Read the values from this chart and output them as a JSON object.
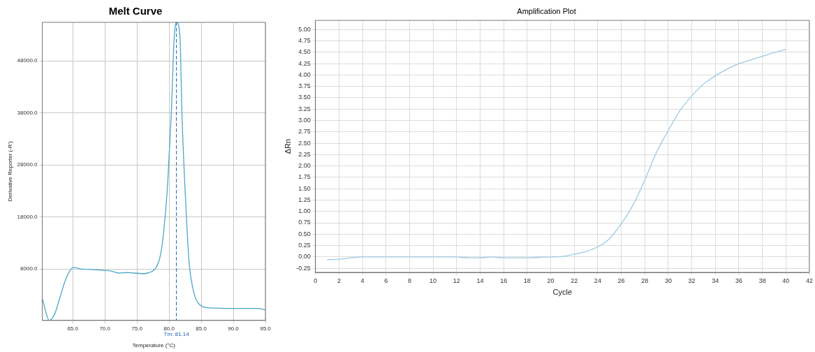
{
  "chart_data": [
    {
      "type": "line",
      "title": "Melt Curve",
      "xlabel": "Temperature (°C)",
      "ylabel": "Derivative Reporter (-R')",
      "x": [
        60.25,
        61.35,
        62.2,
        63.0,
        64.0,
        65.1,
        66.2,
        67.9,
        69.9,
        71.0,
        72.1,
        73.5,
        74.6,
        76.2,
        77.3,
        78.0,
        78.7,
        79.25,
        79.8,
        80.35,
        80.8,
        81.2,
        81.7,
        82.0,
        82.6,
        83.1,
        83.7,
        84.55,
        86.4,
        90.1,
        93.85,
        95.0
      ],
      "series": [
        {
          "color": "#4aa6c8",
          "values": [
            2300,
            -1900,
            -600,
            2500,
            6300,
            8300,
            8000,
            7900,
            7700,
            7600,
            7200,
            7300,
            7200,
            7100,
            7500,
            8300,
            10900,
            16200,
            24800,
            38000,
            52500,
            55400,
            52500,
            38000,
            20500,
            9600,
            4300,
            1400,
            500,
            400,
            400,
            100
          ]
        }
      ],
      "xlim": [
        60.25,
        95
      ],
      "ylim": [
        -1900,
        55400
      ],
      "xticks": [
        {
          "value": 65,
          "label": "65.0"
        },
        {
          "value": 70,
          "label": "70.0"
        },
        {
          "value": 75,
          "label": "75.0"
        },
        {
          "value": 80,
          "label": "80.0"
        },
        {
          "value": 85,
          "label": "85.0"
        },
        {
          "value": 90,
          "label": "90.0"
        },
        {
          "value": 95,
          "label": "95.0"
        }
      ],
      "yticks": [
        {
          "value": 8000,
          "label": "8000.0"
        },
        {
          "value": 18000,
          "label": "18000.0"
        },
        {
          "value": 28000,
          "label": "28000.0"
        },
        {
          "value": 38000,
          "label": "38000.0"
        },
        {
          "value": 48000,
          "label": "48000.0"
        }
      ],
      "ref_lines": [
        {
          "axis": "x",
          "value": 81.14,
          "label": "Tm: 81.14",
          "color": "#2060b0",
          "line_style": "dashed"
        }
      ],
      "grid": true,
      "legend": false,
      "marker": "none",
      "line_style": "solid"
    },
    {
      "type": "line",
      "title": "Amplification Plot",
      "xlabel": "Cycle",
      "ylabel": "ΔRn",
      "x": [
        1,
        2,
        3,
        4,
        5,
        6,
        7,
        8,
        9,
        10,
        11,
        12,
        13,
        14,
        15,
        16,
        17,
        18,
        19,
        20,
        21,
        22,
        23,
        24,
        25,
        26,
        27,
        28,
        29,
        30,
        31,
        32,
        33,
        34,
        35,
        36,
        37,
        38,
        39,
        40
      ],
      "series": [
        {
          "color": "#9ccbe2",
          "values": [
            -0.06,
            -0.05,
            -0.02,
            0,
            0,
            0,
            0,
            0,
            0,
            0,
            0,
            0,
            -0.02,
            -0.02,
            0,
            -0.02,
            -0.02,
            -0.02,
            -0.01,
            0,
            0.01,
            0.06,
            0.12,
            0.22,
            0.4,
            0.73,
            1.14,
            1.69,
            2.3,
            2.78,
            3.22,
            3.54,
            3.8,
            3.98,
            4.13,
            4.25,
            4.33,
            4.41,
            4.49,
            4.56
          ]
        }
      ],
      "xlim": [
        0,
        42
      ],
      "ylim": [
        -0.34,
        5.2
      ],
      "xticks": [
        0,
        2,
        4,
        6,
        8,
        10,
        12,
        14,
        16,
        18,
        20,
        22,
        24,
        26,
        28,
        30,
        32,
        34,
        36,
        38,
        40,
        42
      ],
      "yticks": [
        {
          "value": -0.25,
          "label": "-0.25"
        },
        {
          "value": 0,
          "label": "0.00"
        },
        {
          "value": 0.25,
          "label": "0.25"
        },
        {
          "value": 0.5,
          "label": "0.50"
        },
        {
          "value": 0.75,
          "label": "0.75"
        },
        {
          "value": 1,
          "label": "1.00"
        },
        {
          "value": 1.25,
          "label": "1.25"
        },
        {
          "value": 1.5,
          "label": "1.50"
        },
        {
          "value": 1.75,
          "label": "1.75"
        },
        {
          "value": 2,
          "label": "2.00"
        },
        {
          "value": 2.25,
          "label": "2.25"
        },
        {
          "value": 2.5,
          "label": "2.50"
        },
        {
          "value": 2.75,
          "label": "2.75"
        },
        {
          "value": 3,
          "label": "3.00"
        },
        {
          "value": 3.25,
          "label": "3.25"
        },
        {
          "value": 3.5,
          "label": "3.50"
        },
        {
          "value": 3.75,
          "label": "3.75"
        },
        {
          "value": 4,
          "label": "4.00"
        },
        {
          "value": 4.25,
          "label": "4.25"
        },
        {
          "value": 4.5,
          "label": "4.50"
        },
        {
          "value": 4.75,
          "label": "4.75"
        },
        {
          "value": 5,
          "label": "5.00"
        }
      ],
      "grid": true,
      "legend": false,
      "marker": "none",
      "line_style": "solid"
    }
  ]
}
